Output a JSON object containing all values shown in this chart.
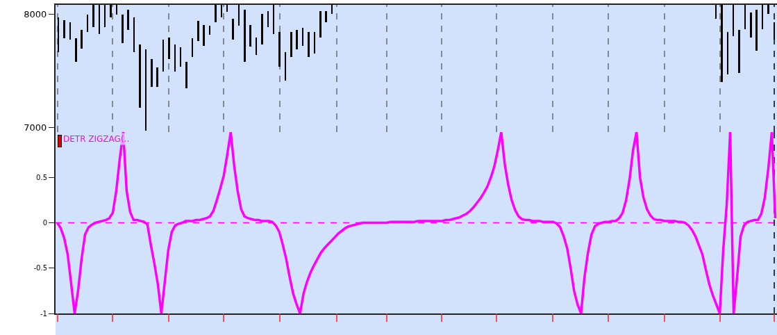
{
  "chart_data": [
    {
      "type": "bar",
      "categories": [
        null,
        null,
        null,
        null,
        null,
        null,
        null,
        null,
        null,
        null,
        null,
        null,
        null,
        null,
        null,
        null,
        null,
        null,
        null,
        null,
        null,
        null,
        null,
        null,
        null,
        null,
        null,
        null,
        null,
        null,
        null,
        null,
        null,
        null,
        null,
        null,
        null,
        null,
        null,
        null,
        null,
        null,
        null,
        null,
        null,
        null,
        null,
        null,
        null,
        null,
        null,
        null,
        null,
        null,
        null,
        null,
        null,
        null,
        null,
        null,
        null,
        null,
        null,
        null,
        null,
        null,
        null,
        null,
        null,
        null,
        null,
        null,
        null,
        null,
        null,
        null,
        null,
        null,
        null,
        null,
        null,
        null,
        null,
        null,
        null,
        null,
        null,
        null,
        null,
        null,
        null,
        null,
        null,
        null,
        null,
        null,
        null,
        null,
        null,
        null,
        null,
        null,
        null,
        null,
        null,
        null,
        null,
        null,
        null,
        null,
        null,
        null,
        null,
        null,
        null,
        null,
        null,
        null,
        null,
        null,
        null,
        null,
        null,
        null
      ],
      "base": [
        7665,
        7785,
        7775,
        7580,
        7695,
        7840,
        7885,
        7825,
        7885,
        7970,
        7995,
        7745,
        7860,
        7665,
        7175,
        6970,
        7360,
        7360,
        7490,
        7600,
        7490,
        7535,
        7345,
        7620,
        7760,
        7720,
        7815,
        7925,
        7970,
        8020,
        7775,
        7895,
        7580,
        7710,
        7640,
        7730,
        7885,
        7825,
        7535,
        7415,
        7620,
        7690,
        7720,
        7620,
        7650,
        7795,
        7925,
        8000,
        null,
        null,
        null,
        null,
        null,
        null,
        null,
        null,
        null,
        null,
        null,
        null,
        null,
        null,
        null,
        null,
        null,
        null,
        null,
        null,
        null,
        null,
        null,
        null,
        null,
        null,
        null,
        null,
        null,
        null,
        null,
        null,
        null,
        null,
        null,
        null,
        null,
        null,
        null,
        null,
        null,
        null,
        null,
        null,
        null,
        null,
        null,
        null,
        null,
        null,
        null,
        null,
        null,
        null,
        null,
        null,
        null,
        null,
        null,
        null,
        null,
        null,
        null,
        null,
        null,
        7955,
        7400,
        7470,
        7805,
        7480,
        7865,
        7795,
        7675,
        7865,
        8000,
        7775
      ],
      "values": [
        305,
        160,
        150,
        205,
        165,
        155,
        195,
        255,
        195,
        110,
        85,
        250,
        175,
        305,
        555,
        720,
        240,
        170,
        285,
        195,
        240,
        170,
        235,
        165,
        180,
        180,
        80,
        155,
        110,
        60,
        180,
        185,
        455,
        190,
        155,
        270,
        140,
        255,
        305,
        250,
        220,
        170,
        160,
        220,
        190,
        230,
        100,
        80,
        null,
        null,
        null,
        null,
        null,
        null,
        null,
        null,
        null,
        null,
        null,
        null,
        null,
        null,
        null,
        null,
        null,
        null,
        null,
        null,
        null,
        null,
        null,
        null,
        null,
        null,
        null,
        null,
        null,
        null,
        null,
        null,
        null,
        null,
        null,
        null,
        null,
        null,
        null,
        null,
        null,
        null,
        null,
        null,
        null,
        null,
        null,
        null,
        null,
        null,
        null,
        null,
        null,
        null,
        null,
        null,
        null,
        null,
        null,
        null,
        null,
        null,
        null,
        null,
        null,
        125,
        680,
        370,
        275,
        380,
        215,
        215,
        360,
        215,
        80,
        150
      ],
      "color": "#000000",
      "ylim": [
        6960,
        8080
      ],
      "yticks": [
        7000,
        8000
      ],
      "tick_labels": "y"
    },
    {
      "type": "line",
      "categories": [
        null,
        null,
        null,
        null,
        null,
        null,
        null,
        null,
        null,
        null,
        null,
        null,
        null,
        null,
        null,
        null,
        null,
        null,
        null,
        null,
        null,
        null,
        null,
        null,
        null,
        null,
        null,
        null,
        null,
        null,
        null,
        null,
        null,
        null,
        null,
        null,
        null,
        null,
        null,
        null,
        null,
        null,
        null,
        null,
        null,
        null,
        null,
        null,
        null,
        null,
        null,
        null,
        null,
        null,
        null,
        null,
        null,
        null,
        null,
        null,
        null,
        null,
        null,
        null,
        null,
        null,
        null,
        null,
        null,
        null,
        null,
        null,
        null,
        null,
        null,
        null,
        null,
        null,
        null,
        null,
        null,
        null,
        null,
        null,
        null,
        null,
        null,
        null,
        null,
        null,
        null,
        null,
        null,
        null,
        null,
        null,
        null,
        null,
        null,
        null,
        null,
        null,
        null,
        null,
        null,
        null,
        null,
        null,
        null,
        null,
        null,
        null,
        null,
        null,
        null,
        null,
        null,
        null,
        null,
        null,
        null,
        null,
        null,
        null,
        null,
        null,
        null,
        null,
        null,
        null,
        null,
        null,
        null,
        null,
        null,
        null,
        null,
        null,
        null,
        null,
        null,
        null,
        null,
        null,
        null,
        null,
        null,
        null,
        null,
        null,
        null,
        null,
        null,
        null,
        null,
        null,
        null,
        null,
        null,
        null,
        null,
        null,
        null,
        null,
        null,
        null,
        null,
        null,
        null,
        null,
        null,
        null,
        null,
        null,
        null,
        null,
        null,
        null,
        null,
        null,
        null,
        null,
        null,
        null,
        null,
        null,
        null,
        null,
        null,
        null,
        null,
        null,
        null,
        null,
        null,
        null,
        null,
        null,
        null,
        null,
        null,
        null,
        null,
        null,
        null,
        null,
        null,
        null
      ],
      "series": [
        {
          "color": "#ff00ff",
          "values": [
            0,
            -0.06,
            -0.17,
            -0.35,
            -0.67,
            -1,
            -0.75,
            -0.4,
            -0.13,
            -0.05,
            -0.02,
            0,
            0.01,
            0.02,
            0.03,
            0.05,
            0.11,
            0.35,
            0.7,
            1,
            0.35,
            0.12,
            0.03,
            0.03,
            0.02,
            0.01,
            -0.02,
            -0.25,
            -0.45,
            -0.68,
            -1,
            -0.65,
            -0.3,
            -0.1,
            -0.03,
            -0.01,
            0,
            0.02,
            0.02,
            0.02,
            0.03,
            0.03,
            0.04,
            0.05,
            0.07,
            0.13,
            0.25,
            0.38,
            0.52,
            0.75,
            1,
            0.63,
            0.35,
            0.15,
            0.07,
            0.05,
            0.04,
            0.03,
            0.03,
            0.02,
            0.02,
            0.02,
            0.01,
            -0.03,
            -0.1,
            -0.24,
            -0.4,
            -0.6,
            -0.78,
            -0.9,
            -1,
            -0.78,
            -0.65,
            -0.55,
            -0.47,
            -0.4,
            -0.33,
            -0.28,
            -0.24,
            -0.2,
            -0.16,
            -0.12,
            -0.09,
            -0.06,
            -0.04,
            -0.03,
            -0.02,
            -0.01,
            0,
            0,
            0,
            0,
            0,
            0,
            0,
            0,
            0.01,
            0.01,
            0.01,
            0.01,
            0.01,
            0.01,
            0.01,
            0.01,
            0.02,
            0.02,
            0.02,
            0.02,
            0.02,
            0.02,
            0.02,
            0.02,
            0.03,
            0.03,
            0.04,
            0.05,
            0.06,
            0.08,
            0.1,
            0.13,
            0.17,
            0.22,
            0.27,
            0.33,
            0.4,
            0.5,
            0.62,
            0.8,
            1,
            0.65,
            0.42,
            0.25,
            0.14,
            0.07,
            0.04,
            0.03,
            0.03,
            0.02,
            0.02,
            0.02,
            0.01,
            0.01,
            0.01,
            0.01,
            -0.01,
            -0.05,
            -0.15,
            -0.28,
            -0.5,
            -0.75,
            -0.9,
            -1,
            -0.6,
            -0.33,
            -0.13,
            -0.04,
            -0.01,
            0,
            0.01,
            0.01,
            0.02,
            0.02,
            0.05,
            0.11,
            0.25,
            0.48,
            0.8,
            1,
            0.5,
            0.28,
            0.15,
            0.08,
            0.04,
            0.03,
            0.03,
            0.02,
            0.02,
            0.02,
            0.02,
            0.01,
            0.01,
            0,
            -0.03,
            -0.08,
            -0.15,
            -0.25,
            -0.35,
            -0.52,
            -0.68,
            -0.8,
            -0.9,
            -1,
            -0.3,
            0.2,
            1,
            -1,
            -0.6,
            -0.15,
            -0.03,
            0.01,
            0.02,
            0.03,
            0.03,
            0.1,
            0.28,
            0.6,
            1,
            0.05
          ]
        }
      ],
      "ylim": [
        -1,
        1
      ],
      "yticks": [
        -1,
        -0.5,
        0,
        0.5
      ],
      "ref_lines": [
        {
          "axis": "y",
          "value": 0,
          "color": "#ff00ff",
          "line_style": "dashed"
        }
      ],
      "annotations": [
        "DETR ZIGZAG(.."
      ],
      "tick_labels": "y",
      "marker": "none",
      "line_style": "solid"
    }
  ]
}
